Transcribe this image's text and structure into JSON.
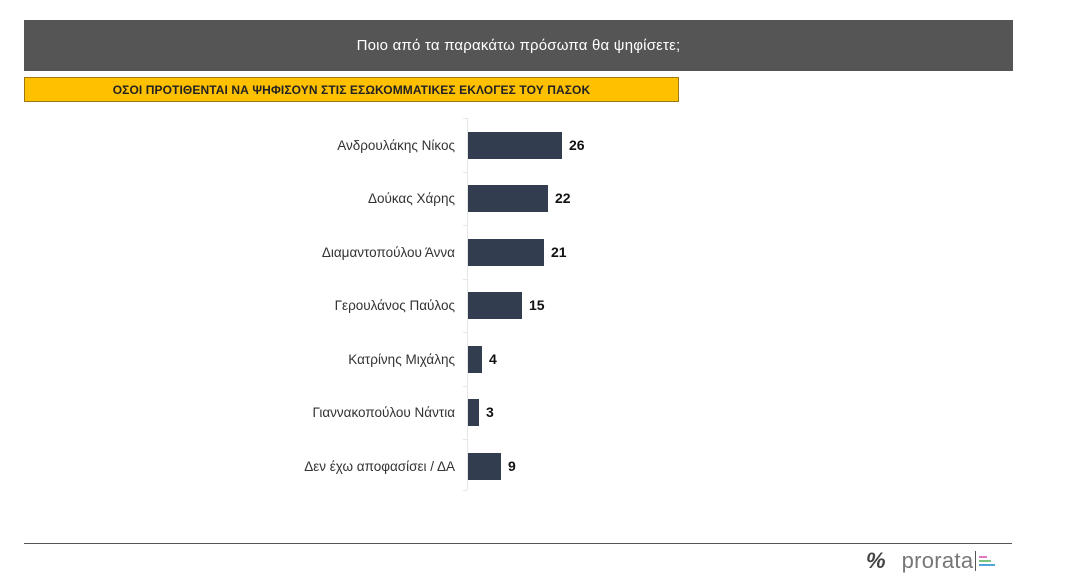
{
  "header": {
    "title": "Ποιο από τα παρακάτω πρόσωπα θα ψηφίσετε;",
    "background": "#555555"
  },
  "subtitle": {
    "text": "ΟΣΟΙ ΠΡΟΤΙΘΕΝΤΑΙ ΝΑ ΨΗΦΙΣΟΥΝ ΣΤΙΣ ΕΣΩΚΟΜΜΑΤΙΚΕΣ ΕΚΛΟΓΕΣ ΤΟΥ ΠΑΣΟΚ",
    "background": "#FFC000"
  },
  "chart_data": {
    "type": "bar",
    "orientation": "horizontal",
    "title": "Ποιο από τα παρακάτω πρόσωπα θα ψηφίσετε;",
    "subtitle": "ΟΣΟΙ ΠΡΟΤΙΘΕΝΤΑΙ ΝΑ ΨΗΦΙΣΟΥΝ ΣΤΙΣ ΕΣΩΚΟΜΜΑΤΙΚΕΣ ΕΚΛΟΓΕΣ ΤΟΥ ΠΑΣΟΚ",
    "categories": [
      "Ανδρουλάκης Νίκος",
      "Δούκας Χάρης",
      "Διαμαντοπούλου Άννα",
      "Γερουλάνος Παύλος",
      "Κατρίνης Μιχάλης",
      "Γιαννακοπούλου Νάντια",
      "Δεν έχω αποφασίσει / ΔΑ"
    ],
    "values": [
      26,
      22,
      21,
      15,
      4,
      3,
      9
    ],
    "xlabel": "",
    "ylabel": "",
    "data_labels": true,
    "grid": false,
    "legend": "none",
    "bar_color": "#323E50"
  },
  "footer": {
    "logo_symbol": "%",
    "brand": "prorata",
    "brand_mark_colors": [
      "#E07AC0",
      "#7BC47F",
      "#4FA3D9"
    ]
  }
}
